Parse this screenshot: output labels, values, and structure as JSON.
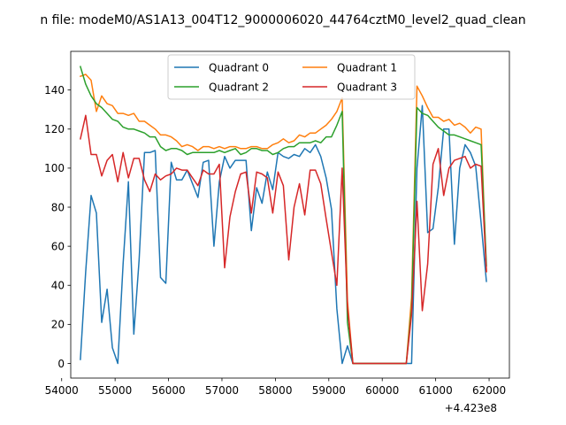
{
  "chart_data": {
    "type": "line",
    "title": "n file: modeM0/AS1A13_004T12_9000006020_44764cztM0_level2_quad_clean",
    "xlabel": "",
    "ylabel": "",
    "x_offset_label": "+4.423e8",
    "xlim": [
      54170,
      62380
    ],
    "ylim": [
      -7.5,
      159.8
    ],
    "xticks": [
      54000,
      55000,
      56000,
      57000,
      58000,
      59000,
      60000,
      61000,
      62000
    ],
    "xtick_labels": [
      "54000",
      "55000",
      "56000",
      "57000",
      "58000",
      "59000",
      "60000",
      "61000",
      "62000"
    ],
    "yticks": [
      0,
      20,
      40,
      60,
      80,
      100,
      120,
      140
    ],
    "ytick_labels": [
      "0",
      "20",
      "40",
      "60",
      "80",
      "100",
      "120",
      "140"
    ],
    "grid": false,
    "legend": {
      "position": "top-center",
      "columns": 2
    },
    "series": [
      {
        "name": "Quadrant 0",
        "color": "#1f77b4",
        "points": [
          [
            54350,
            2
          ],
          [
            54450,
            47
          ],
          [
            54550,
            86
          ],
          [
            54650,
            77
          ],
          [
            54750,
            21
          ],
          [
            54850,
            38
          ],
          [
            54950,
            8
          ],
          [
            55050,
            0
          ],
          [
            55150,
            51
          ],
          [
            55250,
            93
          ],
          [
            55350,
            15
          ],
          [
            55450,
            53
          ],
          [
            55550,
            108
          ],
          [
            55650,
            108
          ],
          [
            55750,
            109
          ],
          [
            55850,
            44
          ],
          [
            55950,
            41
          ],
          [
            56050,
            103
          ],
          [
            56150,
            94
          ],
          [
            56250,
            94
          ],
          [
            56350,
            99
          ],
          [
            56450,
            92
          ],
          [
            56550,
            85
          ],
          [
            56650,
            103
          ],
          [
            56750,
            104
          ],
          [
            56850,
            60
          ],
          [
            56950,
            93
          ],
          [
            57050,
            106
          ],
          [
            57150,
            100
          ],
          [
            57250,
            104
          ],
          [
            57350,
            104
          ],
          [
            57450,
            104
          ],
          [
            57550,
            68
          ],
          [
            57650,
            90
          ],
          [
            57750,
            82
          ],
          [
            57850,
            98
          ],
          [
            57950,
            89
          ],
          [
            58050,
            108
          ],
          [
            58150,
            106
          ],
          [
            58250,
            105
          ],
          [
            58350,
            107
          ],
          [
            58450,
            106
          ],
          [
            58550,
            110
          ],
          [
            58650,
            108
          ],
          [
            58750,
            112
          ],
          [
            58850,
            106
          ],
          [
            58950,
            95
          ],
          [
            59050,
            79
          ],
          [
            59150,
            28
          ],
          [
            59250,
            0
          ],
          [
            59350,
            9
          ],
          [
            59450,
            0
          ],
          [
            59550,
            0
          ],
          [
            59650,
            0
          ],
          [
            59750,
            0
          ],
          [
            59850,
            0
          ],
          [
            59950,
            0
          ],
          [
            60050,
            0
          ],
          [
            60150,
            0
          ],
          [
            60250,
            0
          ],
          [
            60350,
            0
          ],
          [
            60450,
            0
          ],
          [
            60550,
            0
          ],
          [
            60650,
            100
          ],
          [
            60750,
            132
          ],
          [
            60850,
            67
          ],
          [
            60950,
            69
          ],
          [
            61050,
            90
          ],
          [
            61150,
            120
          ],
          [
            61250,
            120
          ],
          [
            61350,
            61
          ],
          [
            61450,
            100
          ],
          [
            61550,
            112
          ],
          [
            61650,
            108
          ],
          [
            61750,
            101
          ],
          [
            61850,
            72
          ],
          [
            61950,
            42
          ]
        ]
      },
      {
        "name": "Quadrant 1",
        "color": "#ff7f0e",
        "points": [
          [
            54350,
            147
          ],
          [
            54450,
            148
          ],
          [
            54550,
            145
          ],
          [
            54650,
            129
          ],
          [
            54750,
            137
          ],
          [
            54850,
            133
          ],
          [
            54950,
            132
          ],
          [
            55050,
            128
          ],
          [
            55150,
            128
          ],
          [
            55250,
            127
          ],
          [
            55350,
            128
          ],
          [
            55450,
            124
          ],
          [
            55550,
            124
          ],
          [
            55650,
            122
          ],
          [
            55750,
            120
          ],
          [
            55850,
            117
          ],
          [
            55950,
            117
          ],
          [
            56050,
            116
          ],
          [
            56150,
            114
          ],
          [
            56250,
            111
          ],
          [
            56350,
            112
          ],
          [
            56450,
            111
          ],
          [
            56550,
            109
          ],
          [
            56650,
            111
          ],
          [
            56750,
            111
          ],
          [
            56850,
            110
          ],
          [
            56950,
            111
          ],
          [
            57050,
            110
          ],
          [
            57150,
            111
          ],
          [
            57250,
            111
          ],
          [
            57350,
            110
          ],
          [
            57450,
            110
          ],
          [
            57550,
            111
          ],
          [
            57650,
            111
          ],
          [
            57750,
            110
          ],
          [
            57850,
            110
          ],
          [
            57950,
            112
          ],
          [
            58050,
            113
          ],
          [
            58150,
            115
          ],
          [
            58250,
            113
          ],
          [
            58350,
            114
          ],
          [
            58450,
            117
          ],
          [
            58550,
            116
          ],
          [
            58650,
            118
          ],
          [
            58750,
            118
          ],
          [
            58850,
            120
          ],
          [
            58950,
            122
          ],
          [
            59050,
            125
          ],
          [
            59150,
            129
          ],
          [
            59250,
            136
          ],
          [
            59350,
            32
          ],
          [
            59450,
            0
          ],
          [
            59550,
            0
          ],
          [
            59650,
            0
          ],
          [
            59750,
            0
          ],
          [
            59850,
            0
          ],
          [
            59950,
            0
          ],
          [
            60050,
            0
          ],
          [
            60150,
            0
          ],
          [
            60250,
            0
          ],
          [
            60350,
            0
          ],
          [
            60450,
            0
          ],
          [
            60550,
            34
          ],
          [
            60650,
            142
          ],
          [
            60750,
            137
          ],
          [
            60850,
            131
          ],
          [
            60950,
            126
          ],
          [
            61050,
            126
          ],
          [
            61150,
            124
          ],
          [
            61250,
            125
          ],
          [
            61350,
            122
          ],
          [
            61450,
            123
          ],
          [
            61550,
            121
          ],
          [
            61650,
            118
          ],
          [
            61750,
            121
          ],
          [
            61850,
            120
          ],
          [
            61950,
            47
          ]
        ]
      },
      {
        "name": "Quadrant 2",
        "color": "#2ca02c",
        "points": [
          [
            54350,
            152
          ],
          [
            54450,
            143
          ],
          [
            54550,
            137
          ],
          [
            54650,
            133
          ],
          [
            54750,
            131
          ],
          [
            54850,
            128
          ],
          [
            54950,
            125
          ],
          [
            55050,
            124
          ],
          [
            55150,
            121
          ],
          [
            55250,
            120
          ],
          [
            55350,
            120
          ],
          [
            55450,
            119
          ],
          [
            55550,
            118
          ],
          [
            55650,
            116
          ],
          [
            55750,
            116
          ],
          [
            55850,
            111
          ],
          [
            55950,
            109
          ],
          [
            56050,
            110
          ],
          [
            56150,
            110
          ],
          [
            56250,
            109
          ],
          [
            56350,
            107
          ],
          [
            56450,
            108
          ],
          [
            56550,
            108
          ],
          [
            56650,
            108
          ],
          [
            56750,
            108
          ],
          [
            56850,
            108
          ],
          [
            56950,
            109
          ],
          [
            57050,
            108
          ],
          [
            57150,
            109
          ],
          [
            57250,
            110
          ],
          [
            57350,
            107
          ],
          [
            57450,
            108
          ],
          [
            57550,
            110
          ],
          [
            57650,
            110
          ],
          [
            57750,
            109
          ],
          [
            57850,
            109
          ],
          [
            57950,
            107
          ],
          [
            58050,
            108
          ],
          [
            58150,
            110
          ],
          [
            58250,
            111
          ],
          [
            58350,
            111
          ],
          [
            58450,
            113
          ],
          [
            58550,
            113
          ],
          [
            58650,
            113
          ],
          [
            58750,
            114
          ],
          [
            58850,
            113
          ],
          [
            58950,
            116
          ],
          [
            59050,
            116
          ],
          [
            59150,
            122
          ],
          [
            59250,
            129
          ],
          [
            59350,
            21
          ],
          [
            59450,
            0
          ],
          [
            59550,
            0
          ],
          [
            59650,
            0
          ],
          [
            59750,
            0
          ],
          [
            59850,
            0
          ],
          [
            59950,
            0
          ],
          [
            60050,
            0
          ],
          [
            60150,
            0
          ],
          [
            60250,
            0
          ],
          [
            60350,
            0
          ],
          [
            60450,
            0
          ],
          [
            60550,
            28
          ],
          [
            60650,
            131
          ],
          [
            60750,
            128
          ],
          [
            60850,
            127
          ],
          [
            60950,
            124
          ],
          [
            61050,
            121
          ],
          [
            61150,
            119
          ],
          [
            61250,
            117
          ],
          [
            61350,
            117
          ],
          [
            61450,
            116
          ],
          [
            61550,
            115
          ],
          [
            61650,
            114
          ],
          [
            61750,
            113
          ],
          [
            61850,
            112
          ],
          [
            61950,
            50
          ]
        ]
      },
      {
        "name": "Quadrant 3",
        "color": "#d62728",
        "points": [
          [
            54350,
            115
          ],
          [
            54450,
            127
          ],
          [
            54550,
            107
          ],
          [
            54650,
            107
          ],
          [
            54750,
            96
          ],
          [
            54850,
            104
          ],
          [
            54950,
            107
          ],
          [
            55050,
            93
          ],
          [
            55150,
            108
          ],
          [
            55250,
            95
          ],
          [
            55350,
            105
          ],
          [
            55450,
            105
          ],
          [
            55550,
            94
          ],
          [
            55650,
            88
          ],
          [
            55750,
            97
          ],
          [
            55850,
            94
          ],
          [
            55950,
            96
          ],
          [
            56050,
            97
          ],
          [
            56150,
            100
          ],
          [
            56250,
            99
          ],
          [
            56350,
            99
          ],
          [
            56450,
            95
          ],
          [
            56550,
            91
          ],
          [
            56650,
            99
          ],
          [
            56750,
            97
          ],
          [
            56850,
            97
          ],
          [
            56950,
            102
          ],
          [
            57050,
            49
          ],
          [
            57150,
            75
          ],
          [
            57250,
            88
          ],
          [
            57350,
            97
          ],
          [
            57450,
            98
          ],
          [
            57550,
            77
          ],
          [
            57650,
            98
          ],
          [
            57750,
            97
          ],
          [
            57850,
            95
          ],
          [
            57950,
            77
          ],
          [
            58050,
            98
          ],
          [
            58150,
            91
          ],
          [
            58250,
            53
          ],
          [
            58350,
            80
          ],
          [
            58450,
            92
          ],
          [
            58550,
            76
          ],
          [
            58650,
            99
          ],
          [
            58750,
            99
          ],
          [
            58850,
            92
          ],
          [
            58950,
            74
          ],
          [
            59050,
            57
          ],
          [
            59150,
            40
          ],
          [
            59250,
            100
          ],
          [
            59350,
            29
          ],
          [
            59450,
            0
          ],
          [
            59550,
            0
          ],
          [
            59650,
            0
          ],
          [
            59750,
            0
          ],
          [
            59850,
            0
          ],
          [
            59950,
            0
          ],
          [
            60050,
            0
          ],
          [
            60150,
            0
          ],
          [
            60250,
            0
          ],
          [
            60350,
            0
          ],
          [
            60450,
            0
          ],
          [
            60550,
            25
          ],
          [
            60650,
            83
          ],
          [
            60750,
            27
          ],
          [
            60850,
            51
          ],
          [
            60950,
            102
          ],
          [
            61050,
            110
          ],
          [
            61150,
            86
          ],
          [
            61250,
            100
          ],
          [
            61350,
            104
          ],
          [
            61450,
            105
          ],
          [
            61550,
            106
          ],
          [
            61650,
            100
          ],
          [
            61750,
            102
          ],
          [
            61850,
            101
          ],
          [
            61950,
            47
          ]
        ]
      }
    ]
  }
}
